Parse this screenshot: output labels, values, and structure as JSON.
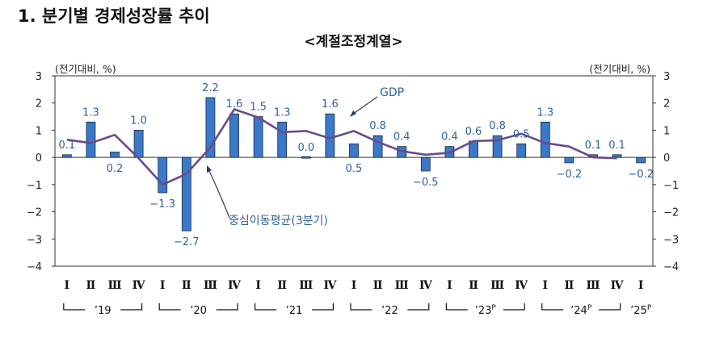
{
  "title": "1. 분기별 경제성장률 추이",
  "subtitle": "<계절조정계열>",
  "chart_data": {
    "type": "bar",
    "unit_left": "(전기대비, %)",
    "unit_right": "(전기대비, %)",
    "ylim": [
      -4,
      3
    ],
    "yticks": [
      "3",
      "2",
      "1",
      "0",
      "−1",
      "−2",
      "−3",
      "−4"
    ],
    "ytick_values": [
      3,
      2,
      1,
      0,
      -1,
      -2,
      -3,
      -4
    ],
    "categories": [
      "Ⅰ",
      "Ⅱ",
      "Ⅲ",
      "Ⅳ",
      "Ⅰ",
      "Ⅱ",
      "Ⅲ",
      "Ⅳ",
      "Ⅰ",
      "Ⅱ",
      "Ⅲ",
      "Ⅳ",
      "Ⅰ",
      "Ⅱ",
      "Ⅲ",
      "Ⅳ",
      "Ⅰ",
      "Ⅱ",
      "Ⅲ",
      "Ⅳ",
      "Ⅰ",
      "Ⅱ",
      "Ⅲ",
      "Ⅳ",
      "Ⅰ"
    ],
    "year_groups": [
      {
        "label": "’19",
        "start": 0,
        "end": 3,
        "sup": ""
      },
      {
        "label": "’20",
        "start": 4,
        "end": 7,
        "sup": ""
      },
      {
        "label": "’21",
        "start": 8,
        "end": 11,
        "sup": ""
      },
      {
        "label": "’22",
        "start": 12,
        "end": 15,
        "sup": ""
      },
      {
        "label": "’23",
        "start": 16,
        "end": 19,
        "sup": "P"
      },
      {
        "label": "’24",
        "start": 20,
        "end": 23,
        "sup": "P"
      },
      {
        "label": "’25",
        "start": 24,
        "end": 24,
        "sup": "P"
      }
    ],
    "series": [
      {
        "name": "GDP",
        "type": "bar",
        "color": "#3a78c9",
        "values": [
          0.1,
          1.3,
          0.2,
          1.0,
          -1.3,
          -2.7,
          2.2,
          1.6,
          1.5,
          1.3,
          0.0,
          1.6,
          0.5,
          0.8,
          0.4,
          -0.5,
          0.4,
          0.6,
          0.8,
          0.5,
          1.3,
          -0.2,
          0.1,
          0.1,
          -0.2
        ],
        "labels": [
          "0.1",
          "1.3",
          "0.2",
          "1.0",
          "−1.3",
          "−2.7",
          "2.2",
          "1.6",
          "1.5",
          "1.3",
          "0.0",
          "1.6",
          "0.5",
          "0.8",
          "0.4",
          "−0.5",
          "0.4",
          "0.6",
          "0.8",
          "0.5",
          "1.3",
          "−0.2",
          "0.1",
          "0.1",
          "−0.2"
        ]
      },
      {
        "name": "중심이동평균(3분기)",
        "type": "line",
        "color": "#6a4a8c",
        "values": [
          0.65,
          0.53,
          0.83,
          -0.03,
          -1.0,
          -0.6,
          0.37,
          1.77,
          1.47,
          0.93,
          0.97,
          0.7,
          0.97,
          0.57,
          0.23,
          0.1,
          0.17,
          0.6,
          0.63,
          0.87,
          0.53,
          0.4,
          0.0,
          -0.03,
          null
        ]
      }
    ]
  }
}
